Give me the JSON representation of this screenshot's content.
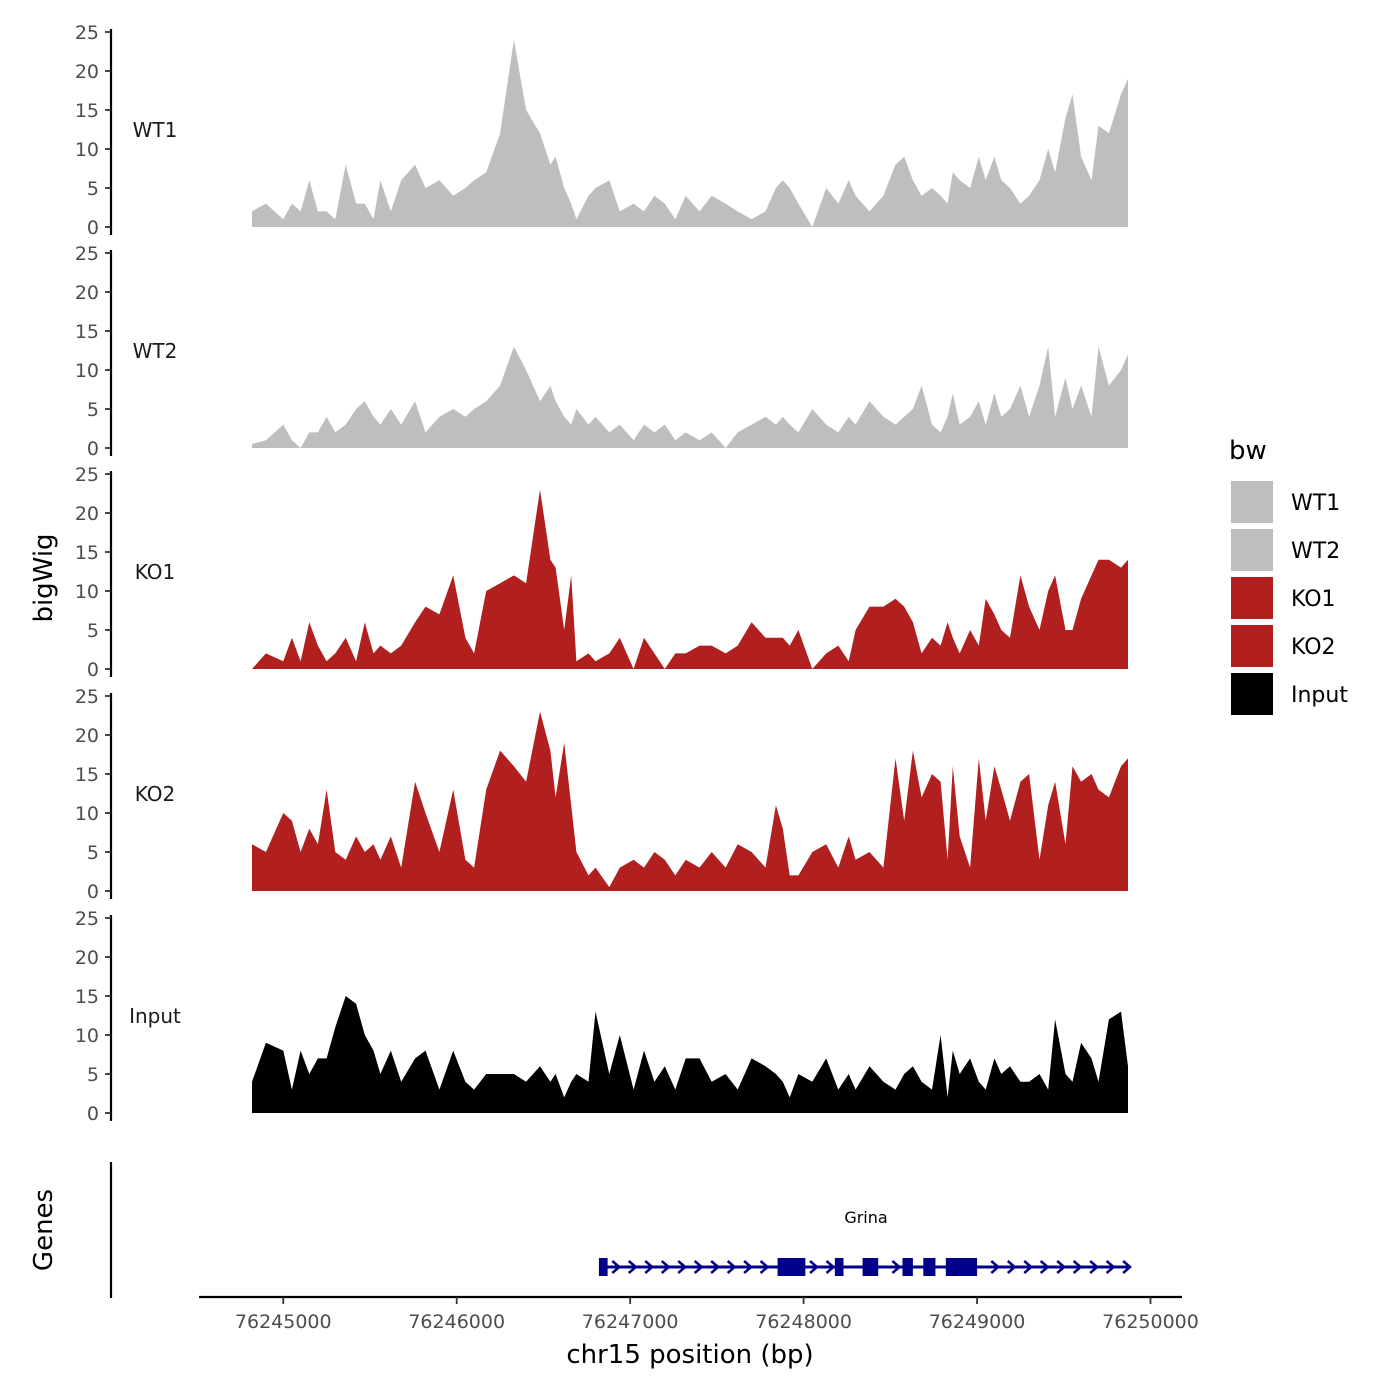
{
  "chart_data": {
    "type": "area",
    "ylabel": "bigWig",
    "xlabel": "chr15 position (bp)",
    "ylim": [
      0,
      25
    ],
    "y_ticks": [
      "0",
      "5",
      "10",
      "15",
      "20",
      "25"
    ],
    "xlim": [
      76244520,
      76250170
    ],
    "x_ticks": [
      {
        "value": 76245000,
        "label": "76245000"
      },
      {
        "value": 76246000,
        "label": "76246000"
      },
      {
        "value": 76247000,
        "label": "76247000"
      },
      {
        "value": 76248000,
        "label": "76248000"
      },
      {
        "value": 76249000,
        "label": "76249000"
      },
      {
        "value": 76250000,
        "label": "76250000"
      }
    ],
    "legend": {
      "title": "bw",
      "position": "right",
      "entries": [
        {
          "label": "WT1",
          "color": "#bebebe"
        },
        {
          "label": "WT2",
          "color": "#bebebe"
        },
        {
          "label": "KO1",
          "color": "#b21f1f"
        },
        {
          "label": "KO2",
          "color": "#b21f1f"
        },
        {
          "label": "Input",
          "color": "#000000"
        }
      ]
    },
    "series": [
      {
        "name": "WT1",
        "color": "#bebebe",
        "x": [
          76244820,
          76244900,
          76245000,
          76245050,
          76245100,
          76245150,
          76245200,
          76245250,
          76245300,
          76245360,
          76245420,
          76245470,
          76245520,
          76245560,
          76245620,
          76245680,
          76245760,
          76245820,
          76245900,
          76245980,
          76246050,
          76246100,
          76246170,
          76246250,
          76246330,
          76246400,
          76246480,
          76246540,
          76246570,
          76246620,
          76246660,
          76246690,
          76246760,
          76246800,
          76246880,
          76246940,
          76247020,
          76247080,
          76247140,
          76247200,
          76247260,
          76247320,
          76247400,
          76247470,
          76247550,
          76247620,
          76247700,
          76247780,
          76247840,
          76247880,
          76247920,
          76247970,
          76248050,
          76248130,
          76248200,
          76248260,
          76248300,
          76248380,
          76248460,
          76248530,
          76248580,
          76248630,
          76248680,
          76248740,
          76248790,
          76248830,
          76248860,
          76248900,
          76248960,
          76249010,
          76249050,
          76249100,
          76249140,
          76249190,
          76249250,
          76249300,
          76249360,
          76249410,
          76249450,
          76249510,
          76249550,
          76249600,
          76249660,
          76249700,
          76249760,
          76249830,
          76249870
        ],
        "values": [
          2,
          3,
          1,
          3,
          2,
          6,
          2,
          2,
          1,
          8,
          3,
          3,
          1,
          6,
          2,
          6,
          8,
          5,
          6,
          4,
          5,
          6,
          7,
          12,
          24,
          15,
          12,
          8,
          9,
          5,
          3,
          1,
          4,
          5,
          6,
          2,
          3,
          2,
          4,
          3,
          1,
          4,
          2,
          4,
          3,
          2,
          1,
          2,
          5,
          6,
          5,
          3,
          0,
          5,
          3,
          6,
          4,
          2,
          4,
          8,
          9,
          6,
          4,
          5,
          4,
          3,
          7,
          6,
          5,
          9,
          6,
          9,
          6,
          5,
          3,
          4,
          6,
          10,
          7,
          14,
          17,
          9,
          6,
          13,
          12,
          17,
          19
        ]
      },
      {
        "name": "WT2",
        "color": "#bebebe",
        "x": [
          76244820,
          76244900,
          76245000,
          76245050,
          76245100,
          76245150,
          76245200,
          76245250,
          76245300,
          76245360,
          76245420,
          76245470,
          76245520,
          76245560,
          76245620,
          76245680,
          76245760,
          76245820,
          76245900,
          76245980,
          76246050,
          76246100,
          76246170,
          76246250,
          76246330,
          76246400,
          76246480,
          76246540,
          76246570,
          76246620,
          76246660,
          76246690,
          76246760,
          76246800,
          76246880,
          76246940,
          76247020,
          76247080,
          76247140,
          76247200,
          76247260,
          76247320,
          76247400,
          76247470,
          76247550,
          76247620,
          76247700,
          76247780,
          76247840,
          76247880,
          76247920,
          76247970,
          76248050,
          76248130,
          76248200,
          76248260,
          76248300,
          76248380,
          76248460,
          76248530,
          76248580,
          76248630,
          76248680,
          76248740,
          76248790,
          76248830,
          76248860,
          76248900,
          76248960,
          76249010,
          76249050,
          76249100,
          76249140,
          76249190,
          76249250,
          76249300,
          76249360,
          76249410,
          76249450,
          76249510,
          76249550,
          76249600,
          76249660,
          76249700,
          76249760,
          76249830,
          76249870
        ],
        "values": [
          0.5,
          1,
          3,
          1,
          0,
          2,
          2,
          4,
          2,
          3,
          5,
          6,
          4,
          3,
          5,
          3,
          6,
          2,
          4,
          5,
          4,
          5,
          6,
          8,
          13,
          10,
          6,
          8,
          6,
          4,
          3,
          5,
          3,
          4,
          2,
          3,
          1,
          3,
          2,
          3,
          1,
          2,
          1,
          2,
          0,
          2,
          3,
          4,
          3,
          4,
          3,
          2,
          5,
          3,
          2,
          4,
          3,
          6,
          4,
          3,
          4,
          5,
          8,
          3,
          2,
          4,
          7,
          3,
          4,
          6,
          3,
          7,
          4,
          5,
          8,
          4,
          8,
          13,
          4,
          9,
          5,
          8,
          4,
          13,
          8,
          10,
          12
        ]
      },
      {
        "name": "KO1",
        "color": "#b21f1f",
        "x": [
          76244820,
          76244900,
          76245000,
          76245050,
          76245100,
          76245150,
          76245200,
          76245250,
          76245300,
          76245360,
          76245420,
          76245470,
          76245520,
          76245560,
          76245620,
          76245680,
          76245760,
          76245820,
          76245900,
          76245980,
          76246050,
          76246100,
          76246170,
          76246250,
          76246330,
          76246400,
          76246480,
          76246540,
          76246570,
          76246620,
          76246660,
          76246690,
          76246760,
          76246800,
          76246880,
          76246940,
          76247020,
          76247080,
          76247140,
          76247200,
          76247260,
          76247320,
          76247400,
          76247470,
          76247550,
          76247620,
          76247700,
          76247780,
          76247840,
          76247880,
          76247920,
          76247970,
          76248050,
          76248130,
          76248200,
          76248260,
          76248300,
          76248380,
          76248460,
          76248530,
          76248580,
          76248630,
          76248680,
          76248740,
          76248790,
          76248830,
          76248860,
          76248900,
          76248960,
          76249010,
          76249050,
          76249100,
          76249140,
          76249190,
          76249250,
          76249300,
          76249360,
          76249410,
          76249450,
          76249510,
          76249550,
          76249600,
          76249660,
          76249700,
          76249760,
          76249830,
          76249870
        ],
        "values": [
          0,
          2,
          1,
          4,
          1,
          6,
          3,
          1,
          2,
          4,
          1,
          6,
          2,
          3,
          2,
          3,
          6,
          8,
          7,
          12,
          4,
          2,
          10,
          11,
          12,
          11,
          23,
          14,
          13,
          5,
          12,
          1,
          2,
          1,
          2,
          4,
          0,
          4,
          2,
          0,
          2,
          2,
          3,
          3,
          2,
          3,
          6,
          4,
          4,
          4,
          3,
          5,
          0,
          2,
          3,
          1,
          5,
          8,
          8,
          9,
          8,
          6,
          2,
          4,
          3,
          6,
          4,
          2,
          5,
          3,
          9,
          7,
          5,
          4,
          12,
          8,
          5,
          10,
          12,
          5,
          5,
          9,
          12,
          14,
          14,
          13,
          14
        ]
      },
      {
        "name": "KO2",
        "color": "#b21f1f",
        "x": [
          76244820,
          76244900,
          76245000,
          76245050,
          76245100,
          76245150,
          76245200,
          76245250,
          76245300,
          76245360,
          76245420,
          76245470,
          76245520,
          76245560,
          76245620,
          76245680,
          76245760,
          76245820,
          76245900,
          76245980,
          76246050,
          76246100,
          76246170,
          76246250,
          76246330,
          76246400,
          76246480,
          76246540,
          76246570,
          76246620,
          76246660,
          76246690,
          76246760,
          76246800,
          76246880,
          76246940,
          76247020,
          76247080,
          76247140,
          76247200,
          76247260,
          76247320,
          76247400,
          76247470,
          76247550,
          76247620,
          76247700,
          76247780,
          76247840,
          76247880,
          76247920,
          76247970,
          76248050,
          76248130,
          76248200,
          76248260,
          76248300,
          76248380,
          76248460,
          76248530,
          76248580,
          76248630,
          76248680,
          76248740,
          76248790,
          76248830,
          76248860,
          76248900,
          76248960,
          76249010,
          76249050,
          76249100,
          76249140,
          76249190,
          76249250,
          76249300,
          76249360,
          76249410,
          76249450,
          76249510,
          76249550,
          76249600,
          76249660,
          76249700,
          76249760,
          76249830,
          76249870
        ],
        "values": [
          6,
          5,
          10,
          9,
          5,
          8,
          6,
          13,
          5,
          4,
          7,
          5,
          6,
          4,
          7,
          3,
          14,
          10,
          5,
          13,
          4,
          3,
          13,
          18,
          16,
          14,
          23,
          18,
          12,
          19,
          11,
          5,
          2,
          3,
          0.5,
          3,
          4,
          3,
          5,
          4,
          2,
          4,
          3,
          5,
          3,
          6,
          5,
          3,
          11,
          8,
          2,
          2,
          5,
          6,
          3,
          7,
          4,
          5,
          3,
          17,
          9,
          18,
          12,
          15,
          14,
          4,
          16,
          7,
          3,
          17,
          9,
          16,
          13,
          9,
          14,
          15,
          4,
          11,
          14,
          6,
          16,
          14,
          15,
          13,
          12,
          16,
          17
        ]
      },
      {
        "name": "Input",
        "color": "#000000",
        "x": [
          76244820,
          76244900,
          76245000,
          76245050,
          76245100,
          76245150,
          76245200,
          76245250,
          76245300,
          76245360,
          76245420,
          76245470,
          76245520,
          76245560,
          76245620,
          76245680,
          76245760,
          76245820,
          76245900,
          76245980,
          76246050,
          76246100,
          76246170,
          76246250,
          76246330,
          76246400,
          76246480,
          76246540,
          76246570,
          76246620,
          76246660,
          76246690,
          76246760,
          76246800,
          76246880,
          76246940,
          76247020,
          76247080,
          76247140,
          76247200,
          76247260,
          76247320,
          76247400,
          76247470,
          76247550,
          76247620,
          76247700,
          76247780,
          76247840,
          76247880,
          76247920,
          76247970,
          76248050,
          76248130,
          76248200,
          76248260,
          76248300,
          76248380,
          76248460,
          76248530,
          76248580,
          76248630,
          76248680,
          76248740,
          76248790,
          76248830,
          76248860,
          76248900,
          76248960,
          76249010,
          76249050,
          76249100,
          76249140,
          76249190,
          76249250,
          76249300,
          76249360,
          76249410,
          76249450,
          76249510,
          76249550,
          76249600,
          76249660,
          76249700,
          76249760,
          76249830,
          76249870
        ],
        "values": [
          4,
          9,
          8,
          3,
          8,
          5,
          7,
          7,
          11,
          15,
          14,
          10,
          8,
          5,
          8,
          4,
          7,
          8,
          3,
          8,
          4,
          3,
          5,
          5,
          5,
          4,
          6,
          4,
          5,
          2,
          4,
          5,
          4,
          13,
          5,
          10,
          3,
          8,
          4,
          6,
          3,
          7,
          7,
          4,
          5,
          3,
          7,
          6,
          5,
          4,
          2,
          5,
          4,
          7,
          3,
          5,
          3,
          6,
          4,
          3,
          5,
          6,
          4,
          3,
          10,
          2,
          8,
          5,
          7,
          4,
          3,
          7,
          5,
          6,
          4,
          4,
          5,
          3,
          12,
          5,
          4,
          9,
          7,
          4,
          12,
          13,
          6
        ]
      }
    ]
  },
  "genes": {
    "title": "Genes",
    "gene_name": "Grina",
    "color": "#00008b",
    "start": 76246820,
    "end": 76249880,
    "exons": [
      [
        76246820,
        76246870
      ],
      [
        76247850,
        76248010
      ],
      [
        76248180,
        76248230
      ],
      [
        76248340,
        76248430
      ],
      [
        76248570,
        76248630
      ],
      [
        76248690,
        76248760
      ],
      [
        76248820,
        76249000
      ]
    ]
  }
}
